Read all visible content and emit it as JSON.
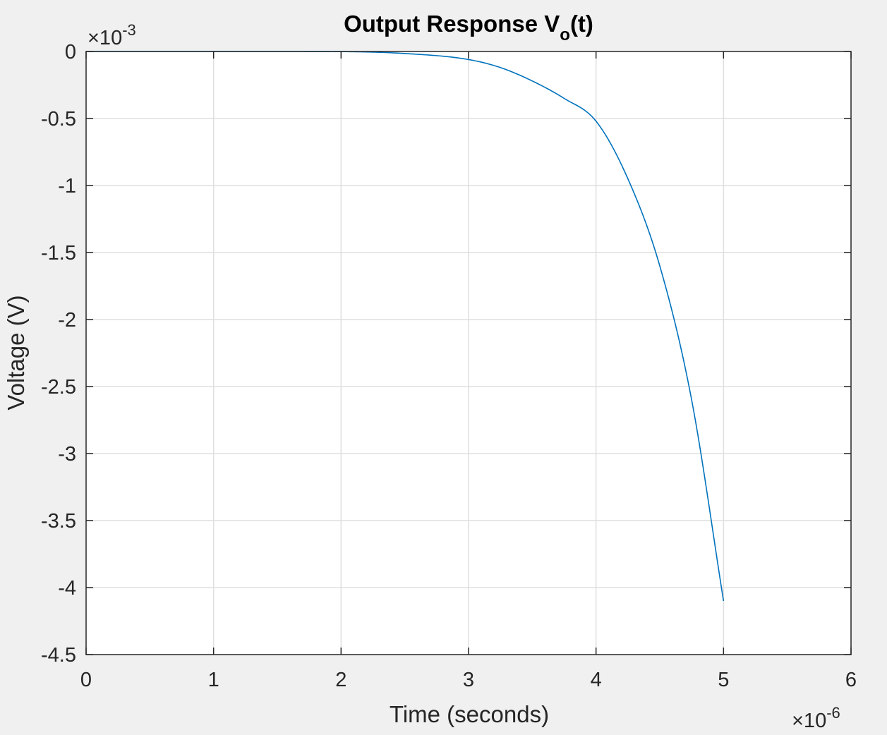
{
  "chart_data": {
    "type": "line",
    "title": {
      "main": "Output Response V",
      "subscript": "o",
      "suffix": "(t)"
    },
    "xlabel": "Time (seconds)",
    "ylabel": "Voltage (V)",
    "x_exponent": {
      "base": "×10",
      "power": "-6"
    },
    "y_exponent": {
      "base": "×10",
      "power": "-3"
    },
    "xlim": [
      0,
      6
    ],
    "ylim": [
      -4.5,
      0
    ],
    "x_ticks": [
      0,
      1,
      2,
      3,
      4,
      5,
      6
    ],
    "x_tick_labels": [
      "0",
      "1",
      "2",
      "3",
      "4",
      "5",
      "6"
    ],
    "y_ticks": [
      0,
      -0.5,
      -1,
      -1.5,
      -2,
      -2.5,
      -3,
      -3.5,
      -4,
      -4.5
    ],
    "y_tick_labels": [
      "0",
      "-0.5",
      "-1",
      "-1.5",
      "-2",
      "-2.5",
      "-3",
      "-3.5",
      "-4",
      "-4.5"
    ],
    "grid": true,
    "series": [
      {
        "color": "#0072bd",
        "x": [
          0,
          0.5,
          1.0,
          1.5,
          2.0,
          2.5,
          3.0,
          3.25,
          3.5,
          3.75,
          4.0,
          4.25,
          4.5,
          4.75,
          5.0
        ],
        "y": [
          0,
          0,
          0,
          0,
          -0.001,
          -0.015,
          -0.06,
          -0.12,
          -0.22,
          -0.35,
          -0.52,
          -0.95,
          -1.6,
          -2.6,
          -4.1
        ]
      }
    ]
  }
}
